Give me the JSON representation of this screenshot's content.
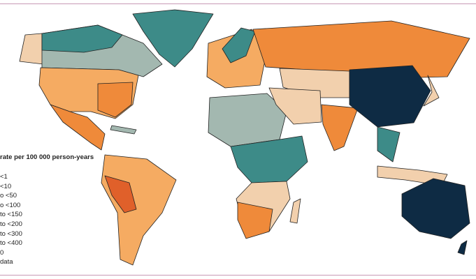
{
  "legend": {
    "title": "rate per 100 000 person-years",
    "items": [
      "<1",
      "<10",
      "o <50",
      "o <100",
      "to <150",
      "to <200",
      "to <300",
      "to <400",
      "0",
      "data"
    ]
  },
  "colors": {
    "navy": "#0e2b44",
    "teal": "#3d8b88",
    "grey_green": "#a3b8b0",
    "peach": "#f2d0ad",
    "light_orange": "#f5ab62",
    "orange": "#ef8a3a",
    "red_orange": "#e0602a",
    "frame": "#c79ab6"
  }
}
